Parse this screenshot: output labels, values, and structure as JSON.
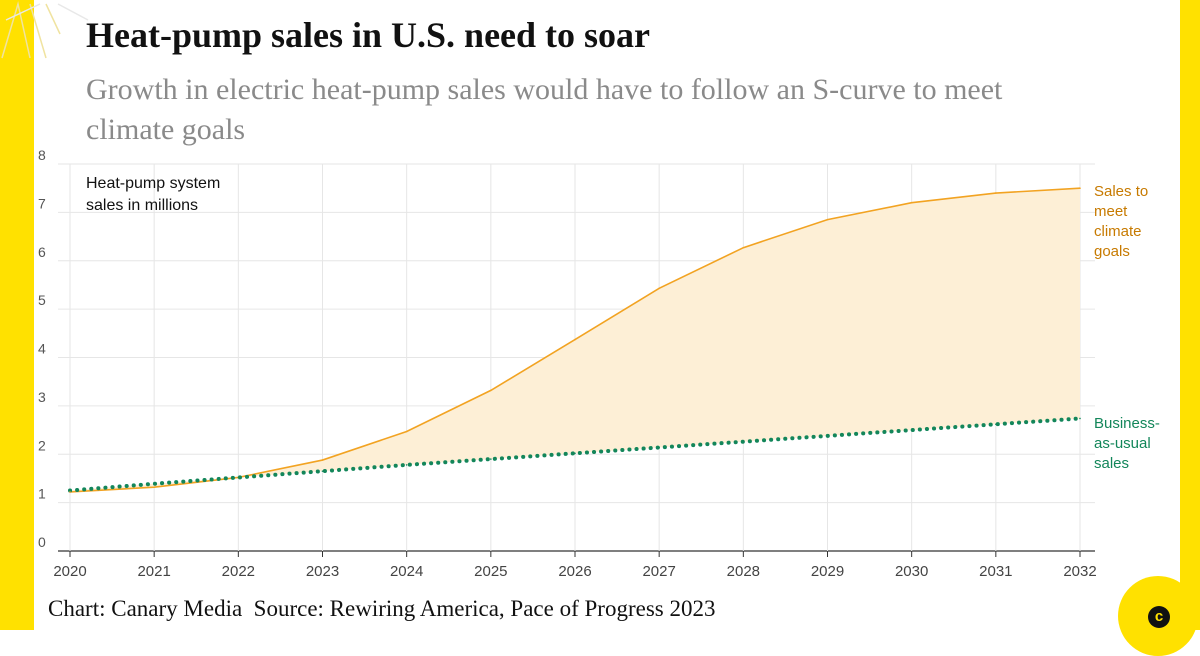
{
  "title": "Heat-pump sales in U.S. need to soar",
  "subtitle": "Growth in electric heat-pump sales would have to follow an S-curve to meet climate goals",
  "footer": "Chart: Canary Media  Source: Rewiring America, Pace of Progress 2023",
  "brand_letter": "c",
  "colors": {
    "frame": "#FFE100",
    "climate_line": "#F2A322",
    "climate_fill": "#FDEFD6",
    "climate_label": "#C77A00",
    "bau_line": "#13865A"
  },
  "chart_data": {
    "type": "area",
    "title": "Heat-pump sales in U.S. need to soar",
    "ylabel_lines": [
      "Heat-pump system",
      "sales in millions"
    ],
    "xlabel": "",
    "x": [
      "2020",
      "2021",
      "2022",
      "2023",
      "2024",
      "2025",
      "2026",
      "2027",
      "2028",
      "2029",
      "2030",
      "2031",
      "2032"
    ],
    "ylim": [
      0,
      8
    ],
    "yticks": [
      "0",
      "1",
      "2",
      "3",
      "4",
      "5",
      "6",
      "7",
      "8"
    ],
    "grid": true,
    "series": [
      {
        "name": "Sales to meet climate goals",
        "label_lines": [
          "Sales to",
          "meet",
          "climate",
          "goals"
        ],
        "style": "solid-area",
        "values": [
          1.22,
          1.32,
          1.52,
          1.88,
          2.47,
          3.32,
          4.37,
          5.43,
          6.27,
          6.85,
          7.2,
          7.4,
          7.5
        ]
      },
      {
        "name": "Business-as-usual sales",
        "label_lines": [
          "Business-",
          "as-usual",
          "sales"
        ],
        "style": "dotted",
        "values": [
          1.25,
          1.39,
          1.52,
          1.65,
          1.78,
          1.9,
          2.02,
          2.14,
          2.26,
          2.38,
          2.5,
          2.62,
          2.74
        ]
      }
    ]
  }
}
